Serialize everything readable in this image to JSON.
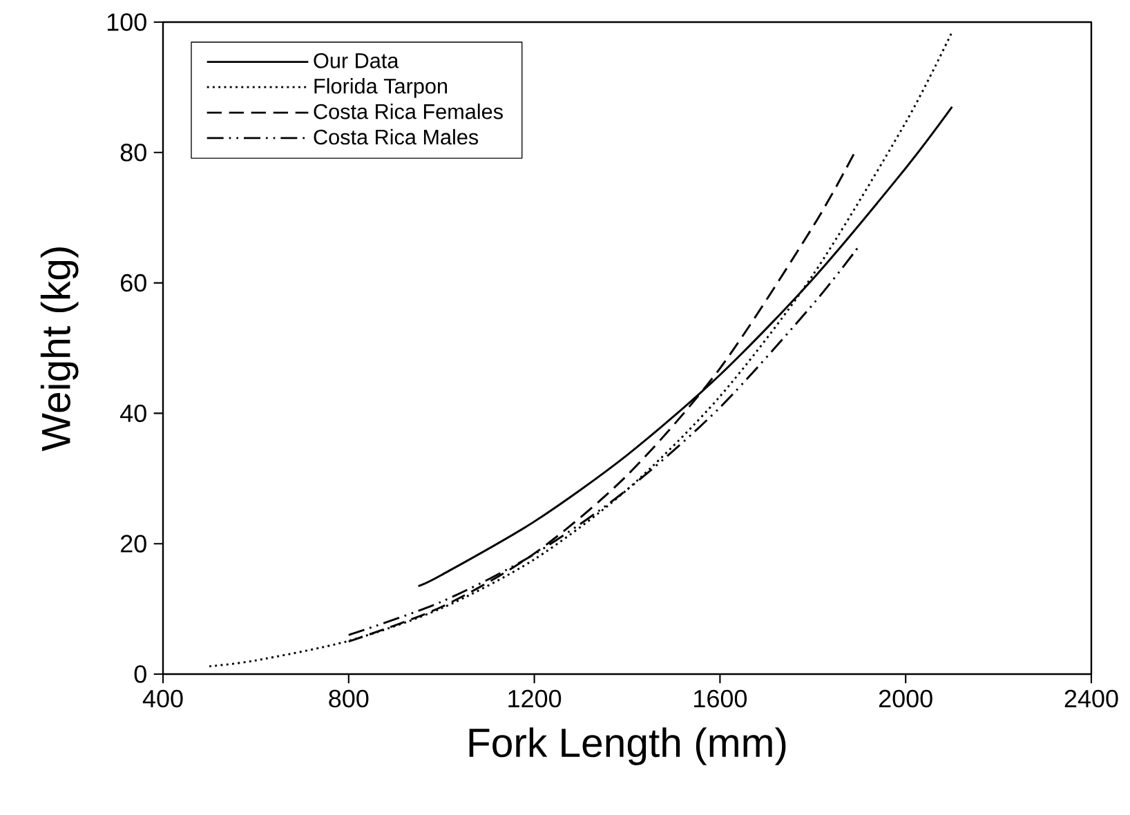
{
  "chart_data": {
    "type": "line",
    "xlabel": "Fork Length (mm)",
    "ylabel": "Weight (kg)",
    "xlim": [
      400,
      2400
    ],
    "xticks": [
      400,
      800,
      1200,
      1600,
      2000,
      2400
    ],
    "ylim": [
      0,
      100
    ],
    "yticks": [
      0,
      20,
      40,
      60,
      80,
      100
    ],
    "legend": "top left",
    "grid": false,
    "marker": "none",
    "series": [
      {
        "name": "Our Data",
        "color": "#000000",
        "line_style": "solid",
        "x": [
          950,
          1000,
          1200,
          1400,
          1600,
          1800,
          2000,
          2100
        ],
        "values": [
          13.5,
          15.2,
          23.4,
          33.6,
          45.9,
          60.6,
          77.6,
          87
        ]
      },
      {
        "name": "Florida Tarpon",
        "color": "#000000",
        "line_style": "dotted",
        "x": [
          500,
          600,
          800,
          1000,
          1200,
          1400,
          1600,
          1800,
          2000,
          2100
        ],
        "values": [
          1.2,
          2.1,
          5.1,
          10.1,
          17.6,
          28.3,
          42.6,
          61.2,
          84.6,
          98.5
        ]
      },
      {
        "name": "Costa Rica Females",
        "color": "#000000",
        "line_style": "dashed",
        "x": [
          800,
          1000,
          1200,
          1400,
          1600,
          1800,
          1890
        ],
        "values": [
          5,
          10.3,
          18.5,
          30.5,
          46.9,
          68.6,
          80
        ]
      },
      {
        "name": "Costa Rica Males",
        "color": "#000000",
        "line_style": "dashdotdot",
        "x": [
          800,
          1000,
          1200,
          1400,
          1600,
          1800,
          1900
        ],
        "values": [
          6,
          11.1,
          18.4,
          28.3,
          40.9,
          56.7,
          65.7
        ]
      }
    ]
  }
}
